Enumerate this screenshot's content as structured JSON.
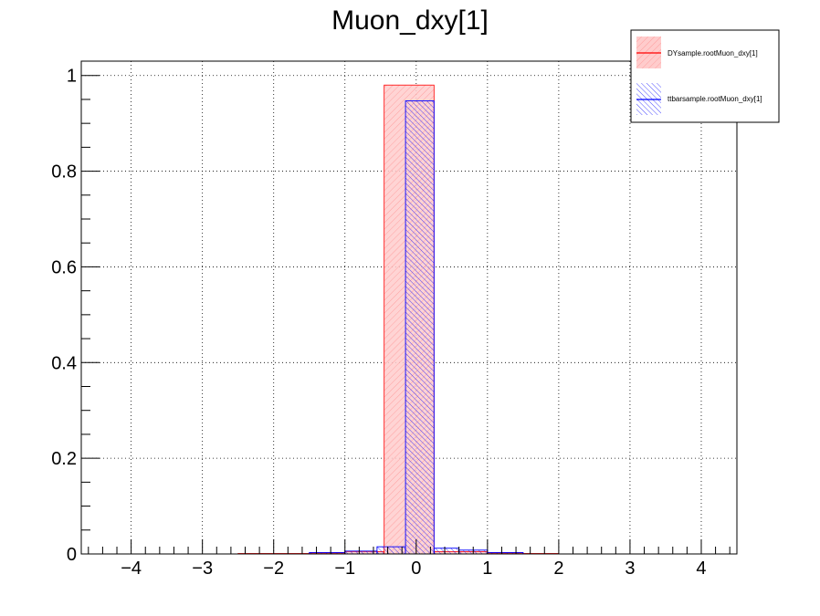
{
  "chart_data": {
    "type": "bar",
    "title": "Muon_dxy[1]",
    "xlabel": "",
    "ylabel": "",
    "xlim": [
      -4.7,
      4.5
    ],
    "ylim": [
      0,
      1.03
    ],
    "x_ticks": [
      -4,
      -3,
      -2,
      -1,
      0,
      1,
      2,
      3,
      4
    ],
    "x_tick_labels": [
      "−4",
      "−3",
      "−2",
      "−1",
      "0",
      "1",
      "2",
      "3",
      "4"
    ],
    "y_ticks": [
      0,
      0.2,
      0.4,
      0.6,
      0.8,
      1
    ],
    "y_tick_labels": [
      "0",
      "0.2",
      "0.4",
      "0.6",
      "0.8",
      "1"
    ],
    "grid": true,
    "legend_position": "top-right",
    "series": [
      {
        "name": "DYsample.rootMuon_dxy[1]",
        "color": "#ff0000",
        "fill": "#ffcccc",
        "style": "solid-fill",
        "bins": [
          {
            "x0": -2.5,
            "x1": -2.0,
            "y": 0.001
          },
          {
            "x0": -2.0,
            "x1": -1.5,
            "y": 0.001
          },
          {
            "x0": -1.5,
            "x1": -1.0,
            "y": 0.002
          },
          {
            "x0": -1.0,
            "x1": -0.45,
            "y": 0.005
          },
          {
            "x0": -0.45,
            "x1": 0.25,
            "y": 0.98
          },
          {
            "x0": 0.25,
            "x1": 1.0,
            "y": 0.005
          },
          {
            "x0": 1.0,
            "x1": 1.5,
            "y": 0.002
          },
          {
            "x0": 1.5,
            "x1": 2.0,
            "y": 0.001
          }
        ]
      },
      {
        "name": "ttbarsample.rootMuon_dxy[1]",
        "color": "#0000ff",
        "fill": "#0000ff",
        "style": "hatched",
        "bins": [
          {
            "x0": -1.5,
            "x1": -1.0,
            "y": 0.003
          },
          {
            "x0": -1.0,
            "x1": -0.55,
            "y": 0.006
          },
          {
            "x0": -0.55,
            "x1": -0.15,
            "y": 0.015
          },
          {
            "x0": -0.15,
            "x1": 0.25,
            "y": 0.947
          },
          {
            "x0": 0.25,
            "x1": 0.6,
            "y": 0.012
          },
          {
            "x0": 0.6,
            "x1": 1.0,
            "y": 0.008
          },
          {
            "x0": 1.0,
            "x1": 1.5,
            "y": 0.003
          }
        ]
      }
    ]
  }
}
